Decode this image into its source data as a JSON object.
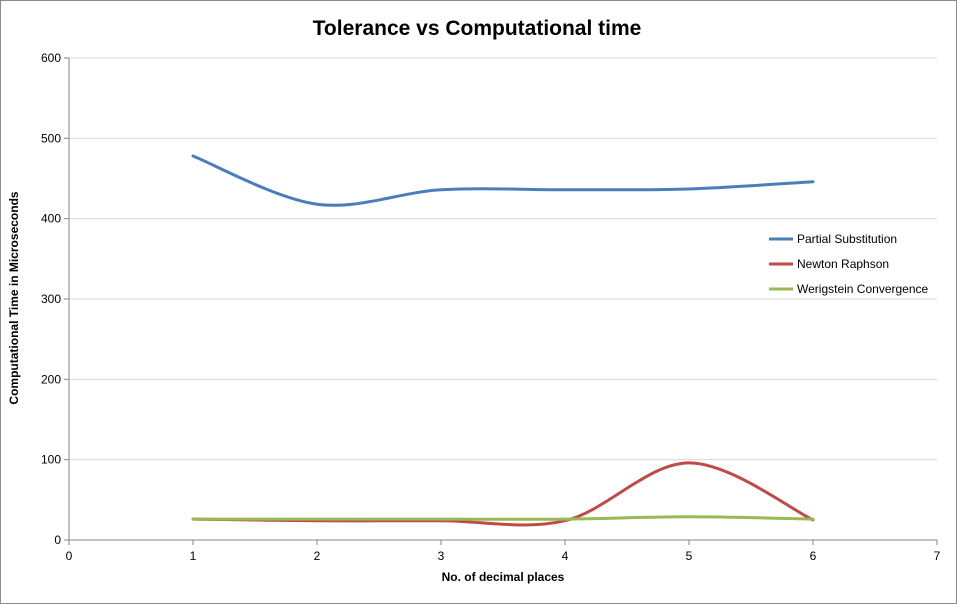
{
  "chart_data": {
    "type": "line",
    "title": "Tolerance vs Computational time",
    "xlabel": "No. of decimal places",
    "ylabel": "Computational Time in Microseconds",
    "xlim": [
      0,
      7
    ],
    "ylim": [
      0,
      600
    ],
    "xticks": [
      "0",
      "1",
      "2",
      "3",
      "4",
      "5",
      "6",
      "7"
    ],
    "yticks": [
      "0",
      "100",
      "200",
      "300",
      "400",
      "500",
      "600"
    ],
    "grid": "horizontal",
    "legend": "right",
    "x": [
      1,
      2,
      3,
      4,
      5,
      6
    ],
    "series": [
      {
        "name": "Partial Substitution",
        "color": "#4a7ebb",
        "values": [
          478,
          418,
          436,
          436,
          437,
          446
        ]
      },
      {
        "name": "Newton Raphson",
        "color": "#be4b48",
        "values": [
          26,
          24,
          24,
          24,
          96,
          25
        ]
      },
      {
        "name": "Werigstein Convergence",
        "color": "#98b954",
        "values": [
          26,
          26,
          26,
          26,
          29,
          26
        ]
      }
    ]
  }
}
